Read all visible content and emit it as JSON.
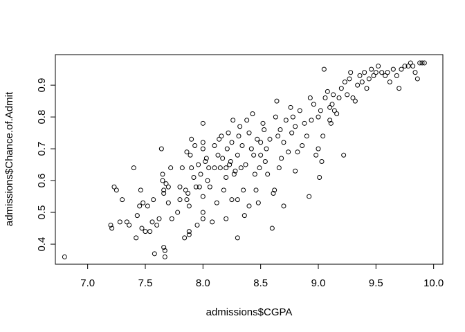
{
  "chart_data": {
    "type": "scatter",
    "x_label": "admissions$CGPA",
    "y_label": "admissions$Chance.of.Admit",
    "x": [
      6.8,
      7.2,
      7.21,
      7.23,
      7.25,
      7.28,
      7.3,
      7.34,
      7.36,
      7.4,
      7.42,
      7.43,
      7.45,
      7.46,
      7.47,
      7.48,
      7.5,
      7.52,
      7.54,
      7.56,
      7.57,
      7.58,
      7.6,
      7.62,
      7.64,
      7.65,
      7.65,
      7.66,
      7.66,
      7.66,
      7.67,
      7.67,
      7.68,
      7.7,
      7.7,
      7.72,
      7.73,
      7.78,
      7.8,
      7.8,
      7.82,
      7.84,
      7.85,
      7.86,
      7.86,
      7.87,
      7.88,
      7.88,
      7.88,
      7.89,
      7.9,
      7.9,
      7.92,
      7.93,
      7.94,
      7.95,
      7.96,
      7.97,
      7.98,
      8.0,
      8.0,
      8.0,
      8.0,
      8.0,
      8.0,
      8.02,
      8.03,
      8.04,
      8.05,
      8.06,
      8.08,
      8.1,
      8.1,
      8.12,
      8.13,
      8.14,
      8.15,
      8.16,
      8.17,
      8.18,
      8.2,
      8.2,
      8.2,
      8.21,
      8.22,
      8.23,
      8.24,
      8.25,
      8.25,
      8.26,
      8.27,
      8.28,
      8.3,
      8.3,
      8.3,
      8.31,
      8.32,
      8.33,
      8.34,
      8.35,
      8.36,
      8.37,
      8.38,
      8.4,
      8.4,
      8.42,
      8.43,
      8.44,
      8.45,
      8.46,
      8.47,
      8.48,
      8.49,
      8.5,
      8.5,
      8.52,
      8.53,
      8.54,
      8.55,
      8.56,
      8.58,
      8.6,
      8.61,
      8.62,
      8.63,
      8.64,
      8.65,
      8.66,
      8.67,
      8.68,
      8.7,
      8.7,
      8.72,
      8.74,
      8.76,
      8.77,
      8.78,
      8.8,
      8.8,
      8.82,
      8.84,
      8.86,
      8.88,
      8.9,
      8.92,
      8.93,
      8.94,
      8.96,
      8.98,
      9.0,
      9.0,
      9.01,
      9.02,
      9.03,
      9.04,
      9.05,
      9.06,
      9.08,
      9.1,
      9.1,
      9.11,
      9.12,
      9.13,
      9.14,
      9.16,
      9.18,
      9.2,
      9.22,
      9.23,
      9.25,
      9.27,
      9.28,
      9.3,
      9.32,
      9.34,
      9.36,
      9.38,
      9.4,
      9.42,
      9.44,
      9.46,
      9.48,
      9.5,
      9.52,
      9.55,
      9.58,
      9.6,
      9.62,
      9.65,
      9.68,
      9.7,
      9.72,
      9.75,
      9.78,
      9.8,
      9.82,
      9.84,
      9.86,
      9.88,
      9.9,
      9.92
    ],
    "values": [
      0.36,
      0.46,
      0.45,
      0.58,
      0.57,
      0.47,
      0.54,
      0.47,
      0.46,
      0.64,
      0.42,
      0.49,
      0.52,
      0.57,
      0.45,
      0.53,
      0.44,
      0.52,
      0.44,
      0.47,
      0.54,
      0.37,
      0.46,
      0.48,
      0.7,
      0.62,
      0.6,
      0.57,
      0.56,
      0.39,
      0.38,
      0.36,
      0.59,
      0.53,
      0.58,
      0.64,
      0.48,
      0.5,
      0.54,
      0.58,
      0.64,
      0.42,
      0.57,
      0.69,
      0.54,
      0.56,
      0.52,
      0.44,
      0.43,
      0.68,
      0.73,
      0.64,
      0.61,
      0.71,
      0.58,
      0.46,
      0.65,
      0.58,
      0.62,
      0.78,
      0.72,
      0.7,
      0.55,
      0.5,
      0.48,
      0.66,
      0.67,
      0.6,
      0.64,
      0.58,
      0.47,
      0.64,
      0.71,
      0.53,
      0.68,
      0.73,
      0.64,
      0.74,
      0.67,
      0.57,
      0.64,
      0.61,
      0.48,
      0.7,
      0.75,
      0.65,
      0.66,
      0.54,
      0.72,
      0.79,
      0.62,
      0.63,
      0.54,
      0.42,
      0.68,
      0.74,
      0.77,
      0.64,
      0.71,
      0.57,
      0.49,
      0.65,
      0.79,
      0.52,
      0.75,
      0.7,
      0.81,
      0.68,
      0.62,
      0.57,
      0.73,
      0.53,
      0.64,
      0.72,
      0.68,
      0.78,
      0.76,
      0.66,
      0.7,
      0.62,
      0.73,
      0.45,
      0.56,
      0.57,
      0.8,
      0.85,
      0.74,
      0.64,
      0.76,
      0.67,
      0.52,
      0.72,
      0.79,
      0.69,
      0.83,
      0.75,
      0.8,
      0.63,
      0.77,
      0.69,
      0.82,
      0.71,
      0.78,
      0.74,
      0.55,
      0.86,
      0.79,
      0.84,
      0.68,
      0.7,
      0.8,
      0.61,
      0.82,
      0.66,
      0.74,
      0.95,
      0.86,
      0.88,
      0.83,
      0.79,
      0.78,
      0.84,
      0.87,
      0.82,
      0.81,
      0.86,
      0.89,
      0.68,
      0.91,
      0.87,
      0.92,
      0.94,
      0.86,
      0.85,
      0.9,
      0.93,
      0.91,
      0.94,
      0.89,
      0.92,
      0.95,
      0.93,
      0.94,
      0.96,
      0.94,
      0.93,
      0.94,
      0.91,
      0.95,
      0.93,
      0.89,
      0.95,
      0.96,
      0.96,
      0.97,
      0.96,
      0.94,
      0.92,
      0.97,
      0.97,
      0.97
    ],
    "color": "#000000",
    "xlim": [
      6.72,
      10.08
    ],
    "ylim": [
      0.337,
      0.996
    ],
    "xticks": [
      {
        "value": 7,
        "label": "7.0"
      },
      {
        "value": 7.5,
        "label": "7.5"
      },
      {
        "value": 8,
        "label": "8.0"
      },
      {
        "value": 8.5,
        "label": "8.5"
      },
      {
        "value": 9,
        "label": "9.0"
      },
      {
        "value": 9.5,
        "label": "9.5"
      },
      {
        "value": 10,
        "label": "10.0"
      }
    ],
    "yticks": [
      0.4,
      0.5,
      0.6,
      0.7,
      0.8,
      0.9
    ],
    "grid": false
  }
}
